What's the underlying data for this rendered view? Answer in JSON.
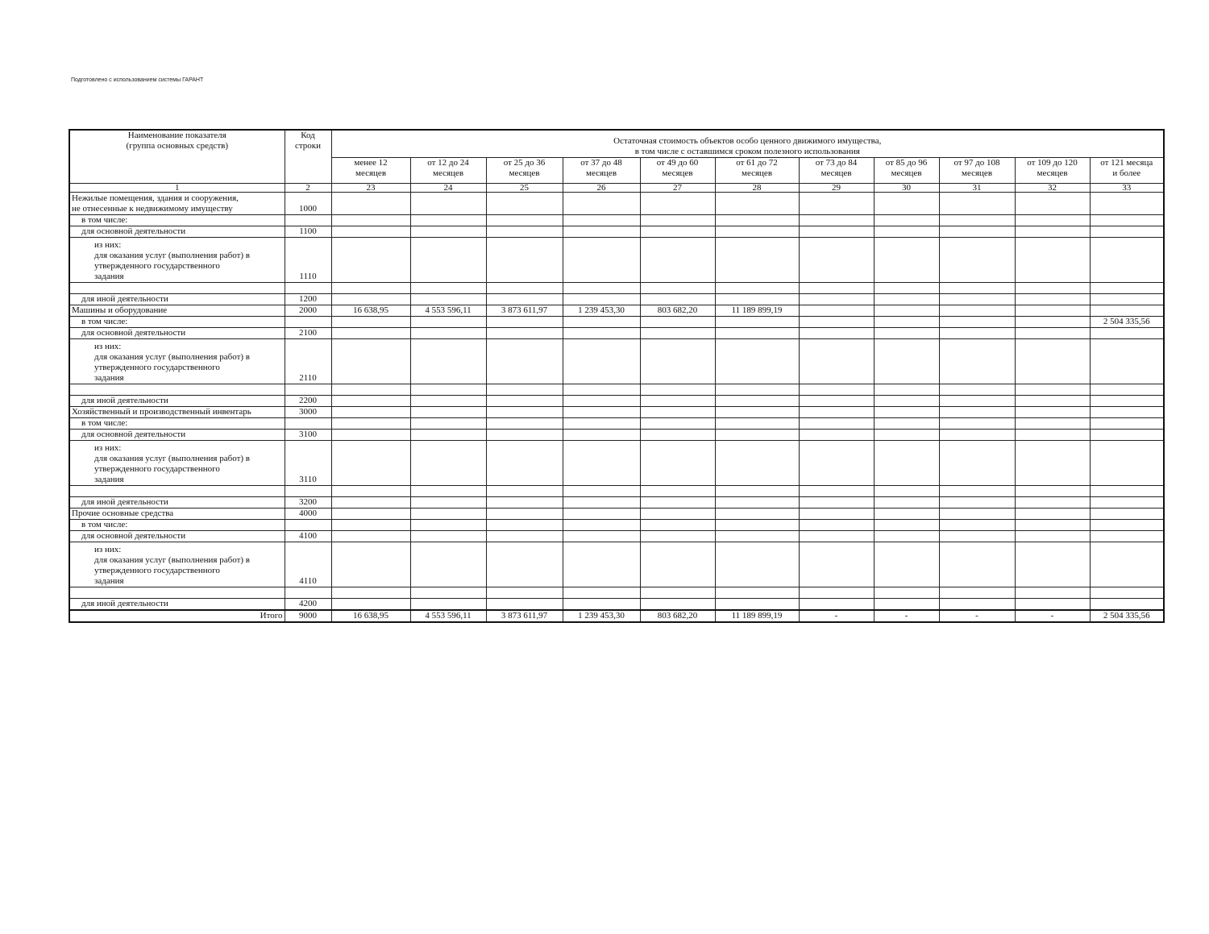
{
  "prepared_note": "Подготовлено с использованием системы ГАРАНТ",
  "header": {
    "name_col": "Наименование показателя\n(группа основных средств)",
    "code_col": "Код\nстроки",
    "group_title": "Остаточная стоимость объектов особо ценного движимого имущества,\nв том числе с оставшимся сроком полезного использования",
    "columns": [
      "менее 12\nмесяцев",
      "от 12 до 24\nмесяцев",
      "от 25 до 36\nмесяцев",
      "от 37 до 48\nмесяцев",
      "от 49 до 60\nмесяцев",
      "от 61 до 72\nмесяцев",
      "от 73 до 84\nмесяцев",
      "от 85 до 96\nмесяцев",
      "от 97 до 108\nмесяцев",
      "от 109 до 120\nмесяцев",
      "от 121 месяца\nи более"
    ],
    "numbers": [
      "1",
      "2",
      "23",
      "24",
      "25",
      "26",
      "27",
      "28",
      "29",
      "30",
      "31",
      "32",
      "33"
    ]
  },
  "rows": [
    {
      "label": "Нежилые помещения, здания и сооружения,\nне отнесенные к недвижимому имуществу",
      "indent": 0,
      "code": "1000",
      "values": []
    },
    {
      "label": "в том числе:",
      "indent": 1,
      "code": "",
      "values": []
    },
    {
      "label": "для основной деятельности",
      "indent": 1,
      "code": "1100",
      "values": []
    },
    {
      "label": "из них:\nдля оказания услуг (выполнения работ) в\nутвержденного государственного\nзадания",
      "indent": 2,
      "code": "1110",
      "values": []
    },
    {
      "label": "",
      "indent": 0,
      "code": "",
      "values": []
    },
    {
      "label": "для иной деятельности",
      "indent": 1,
      "code": "1200",
      "values": []
    },
    {
      "label": "Машины и оборудование",
      "indent": 0,
      "code": "2000",
      "values": [
        "16 638,95",
        "4 553 596,11",
        "3 873 611,97",
        "1 239 453,30",
        "803 682,20",
        "11 189 899,19",
        "",
        "",
        "",
        "",
        ""
      ]
    },
    {
      "label": "в том числе:",
      "indent": 1,
      "code": "",
      "values": [
        "",
        "",
        "",
        "",
        "",
        "",
        "",
        "",
        "",
        "",
        "2 504 335,56"
      ]
    },
    {
      "label": "для основной деятельности",
      "indent": 1,
      "code": "2100",
      "values": []
    },
    {
      "label": "из них:\nдля оказания услуг (выполнения работ) в\nутвержденного государственного\nзадания",
      "indent": 2,
      "code": "2110",
      "values": []
    },
    {
      "label": "",
      "indent": 0,
      "code": "",
      "values": []
    },
    {
      "label": "для иной деятельности",
      "indent": 1,
      "code": "2200",
      "values": []
    },
    {
      "label": "Хозяйственный и производственный инвентарь",
      "indent": 0,
      "code": "3000",
      "values": []
    },
    {
      "label": "в том числе:",
      "indent": 1,
      "code": "",
      "values": []
    },
    {
      "label": "для основной деятельности",
      "indent": 1,
      "code": "3100",
      "values": []
    },
    {
      "label": "из них:\nдля оказания услуг (выполнения работ) в\nутвержденного государственного\nзадания",
      "indent": 2,
      "code": "3110",
      "values": []
    },
    {
      "label": "",
      "indent": 0,
      "code": "",
      "values": []
    },
    {
      "label": "для иной деятельности",
      "indent": 1,
      "code": "3200",
      "values": []
    },
    {
      "label": "Прочие основные средства",
      "indent": 0,
      "code": "4000",
      "values": []
    },
    {
      "label": "в том числе:",
      "indent": 1,
      "code": "",
      "values": []
    },
    {
      "label": "для основной деятельности",
      "indent": 1,
      "code": "4100",
      "values": []
    },
    {
      "label": "из них:\nдля оказания услуг (выполнения работ) в\nутвержденного государственного\nзадания",
      "indent": 2,
      "code": "4110",
      "values": []
    },
    {
      "label": "",
      "indent": 0,
      "code": "",
      "values": []
    },
    {
      "label": "для иной деятельности",
      "indent": 1,
      "code": "4200",
      "values": []
    },
    {
      "label": "Итого",
      "indent": -1,
      "code": "9000",
      "values": [
        "16 638,95",
        "4 553 596,11",
        "3 873 611,97",
        "1 239 453,30",
        "803 682,20",
        "11 189 899,19",
        "-",
        "-",
        "-",
        "-",
        "2 504 335,56"
      ]
    }
  ]
}
